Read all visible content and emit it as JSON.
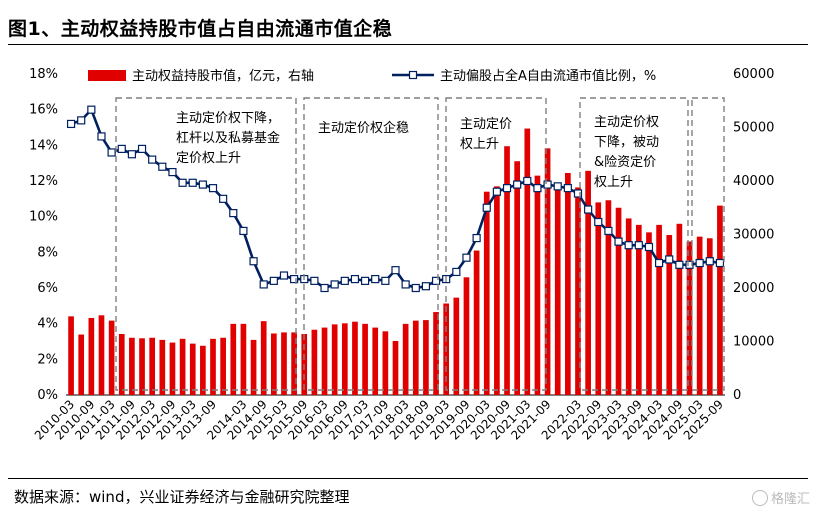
{
  "title": "图1、主动权益持股市值占自由流通市值企稳",
  "source": "数据来源：wind，兴业证券经济与金融研究院整理",
  "watermark": "格隆汇",
  "colors": {
    "bar": "#e00000",
    "line": "#002060",
    "marker_fill": "#ffffff",
    "box": "#7f7f7f"
  },
  "chart_data": {
    "type": "bar+line",
    "legend": [
      "主动权益持股市值，亿元，右轴",
      "主动偏股占全A自由流通市值比例，%"
    ],
    "y_left": {
      "min": 0,
      "max": 18,
      "step": 2,
      "ticks": [
        "0%",
        "2%",
        "4%",
        "6%",
        "8%",
        "10%",
        "12%",
        "14%",
        "16%",
        "18%"
      ]
    },
    "y_right": {
      "min": 0,
      "max": 60000,
      "step": 10000,
      "ticks": [
        "0",
        "10000",
        "20000",
        "30000",
        "40000",
        "50000",
        "60000"
      ]
    },
    "x_labels": [
      "2010-03",
      "2010-09",
      "2011-03",
      "2011-09",
      "2012-03",
      "2012-09",
      "2013-03",
      "2013-09",
      "2014-03",
      "2014-09",
      "2015-03",
      "2015-09",
      "2016-03",
      "2016-09",
      "2017-03",
      "2017-09",
      "2018-03",
      "2018-09",
      "2019-03",
      "2019-09",
      "2020-03",
      "2020-09",
      "2021-03",
      "2021-09",
      "2022-03",
      "2022-09",
      "2023-03",
      "2023-09",
      "2024-03",
      "2024-09",
      "2025-03",
      "2025-09"
    ],
    "series": [
      {
        "name": "主动权益持股市值",
        "axis": "right",
        "type": "bar",
        "values": [
          14700,
          11300,
          14400,
          14900,
          13900,
          11400,
          10700,
          10600,
          10700,
          10300,
          9800,
          10500,
          9600,
          9200,
          10500,
          10700,
          13300,
          13300,
          10300,
          13800,
          11500,
          11700,
          11700,
          11400,
          12200,
          12600,
          13200,
          13400,
          13700,
          13300,
          12600,
          11900,
          10100,
          13300,
          13900,
          14000,
          15500,
          17100,
          18200,
          22000,
          27000,
          38000,
          39000,
          46500,
          43700,
          49800,
          41000,
          46100,
          39000,
          41500,
          38800,
          41900,
          36000,
          36400,
          35000,
          33000,
          31800,
          30400,
          31800,
          29900,
          32000,
          28700,
          29600,
          29300,
          35400
        ],
        "bar_indices": [
          0,
          1,
          2,
          3,
          4,
          5,
          6,
          7,
          8,
          9,
          10,
          11,
          12,
          13,
          14,
          15,
          16,
          17,
          18,
          19,
          20,
          21,
          22,
          23,
          24,
          25,
          26,
          27,
          28,
          29,
          30,
          31,
          32,
          33,
          34,
          35,
          36,
          37,
          38,
          39,
          40,
          41,
          42,
          43,
          44,
          45,
          46,
          47,
          48,
          49,
          50,
          51,
          52,
          53,
          54,
          55,
          56,
          57,
          58,
          59,
          60,
          61,
          62,
          63,
          64
        ]
      },
      {
        "name": "主动偏股占全A自由流通市值比例",
        "axis": "left",
        "type": "line",
        "values": [
          15.2,
          15.4,
          16.0,
          14.5,
          13.6,
          13.8,
          13.5,
          13.8,
          13.2,
          12.8,
          12.5,
          11.9,
          11.9,
          11.8,
          11.6,
          11.0,
          10.2,
          9.2,
          7.5,
          6.2,
          6.4,
          6.7,
          6.5,
          6.5,
          6.4,
          6.0,
          6.2,
          6.4,
          6.5,
          6.4,
          6.5,
          6.4,
          7.0,
          6.2,
          6.0,
          6.1,
          6.4,
          6.5,
          6.9,
          7.7,
          8.8,
          10.5,
          11.4,
          11.6,
          11.8,
          12.0,
          11.6,
          11.8,
          11.7,
          11.6,
          11.3,
          10.4,
          9.7,
          9.2,
          8.6,
          8.4,
          8.4,
          8.3,
          7.4,
          7.6,
          7.3,
          7.3,
          7.4,
          7.5,
          7.4
        ]
      }
    ],
    "annotations": [
      "主动定价权下降，杠杆以及私募基金定价权上升",
      "主动定价权企稳",
      "主动定价权上升",
      "主动定价权下降，被动&险资定价权上升"
    ]
  }
}
